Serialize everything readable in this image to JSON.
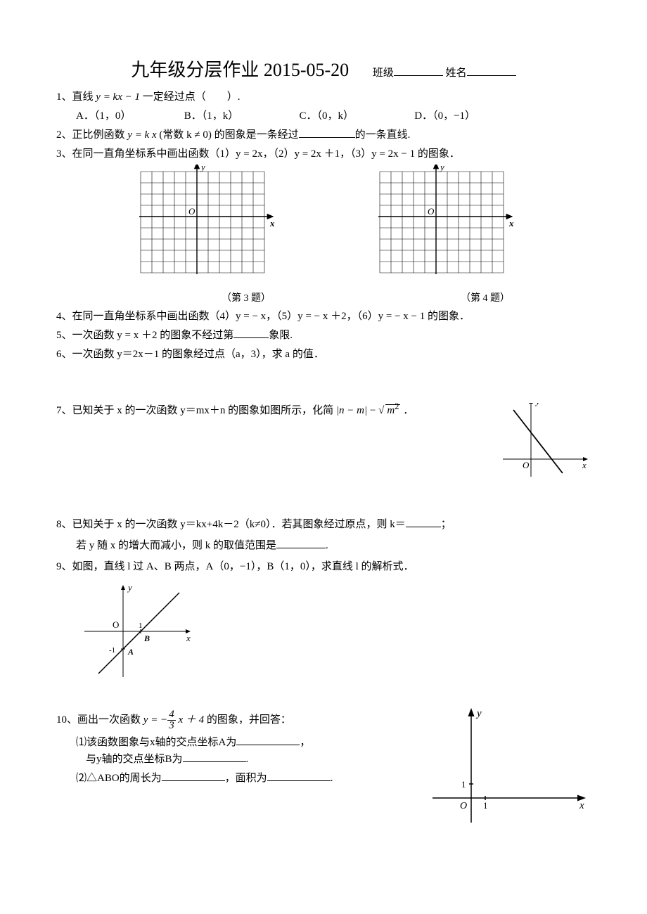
{
  "title": "九年级分层作业 2015-05-20",
  "header_labels": {
    "class": "班级",
    "name": "姓名"
  },
  "q1": {
    "num": "1、",
    "text_a": "直线 ",
    "eq": "y = kx − 1",
    "text_b": " 一定经过点（　　）.",
    "choices": {
      "A": "A．（1，0）",
      "B": "B．（1，k）",
      "C": "C．（0，k）",
      "D": "D．（0，−1）"
    }
  },
  "q2": {
    "num": "2、",
    "text_a": "正比例函数 ",
    "eq": "y = k x",
    "cond": "(常数 k ≠ 0)",
    "text_b": " 的图象是一条经过",
    "text_c": "的一条直线."
  },
  "q3": {
    "num": "3、",
    "text": "在同一直角坐标系中画出函数（1）y = 2x，（2）y = 2x ＋1，（3）y = 2x − 1 的图象．",
    "caption_left": "（第 3 题）",
    "caption_right": "（第 4 题）"
  },
  "q4": {
    "num": "4、",
    "text": "在同一直角坐标系中画出函数（4）y = − x，（5）y = − x ＋2，（6）y = − x − 1 的图象．"
  },
  "q5": {
    "num": "5、",
    "text_a": "一次函数 y = x ＋2 的图象不经过第",
    "text_b": "象限."
  },
  "q6": {
    "num": "6、",
    "text": "一次函数 y＝2x－1 的图象经过点（a，3），求 a 的值．"
  },
  "q7": {
    "num": "7、",
    "text_a": "已知关于 x 的一次函数 y＝mx＋n 的图象如图所示，化简",
    "abs": "|n − m|",
    "minus": " − ",
    "sqrt_inner": "m",
    "period": " ．",
    "axis_x": "x",
    "axis_y": "y",
    "origin": "O"
  },
  "q8": {
    "num": "8、",
    "text_a": "已知关于 x 的一次函数 y＝kx+4k－2（k≠0）．若其图象经过原点，则 k＝",
    "text_b": "；",
    "text_c": "若 y 随 x 的增大而减小，则 k 的取值范围是",
    "text_d": "."
  },
  "q9": {
    "num": "9、",
    "text": "如图，直线 l 过 A、B 两点，A（0，−1），B（1，0），求直线 l 的解析式．",
    "labels": {
      "x": "x",
      "y": "y",
      "O": "O",
      "A": "A",
      "B": "B",
      "one": "1",
      "neg1": "-1"
    }
  },
  "q10": {
    "num": "10、",
    "text_a": "画出一次函数 ",
    "eq_pre": "y = −",
    "frac_n": "4",
    "frac_d": "3",
    "eq_post": " x ＋ 4",
    "text_b": " 的图象，并回答：",
    "p1_a": "⑴该函数图象与x轴的交点坐标A为",
    "p1_b": "，",
    "p1_c": "与y轴的交点坐标B为",
    "p1_d": ".",
    "p2_a": "⑵△ABO的周长为",
    "p2_b": "，面积为",
    "p2_c": ".",
    "axis": {
      "x": "x",
      "y": "y",
      "O": "O",
      "one": "1"
    }
  },
  "grid": {
    "cols": 11,
    "rows": 9,
    "cell": 16,
    "origin_col": 5,
    "origin_row": 4,
    "label_y": "y",
    "label_x": "x",
    "label_o": "O",
    "stroke": "#000000"
  }
}
